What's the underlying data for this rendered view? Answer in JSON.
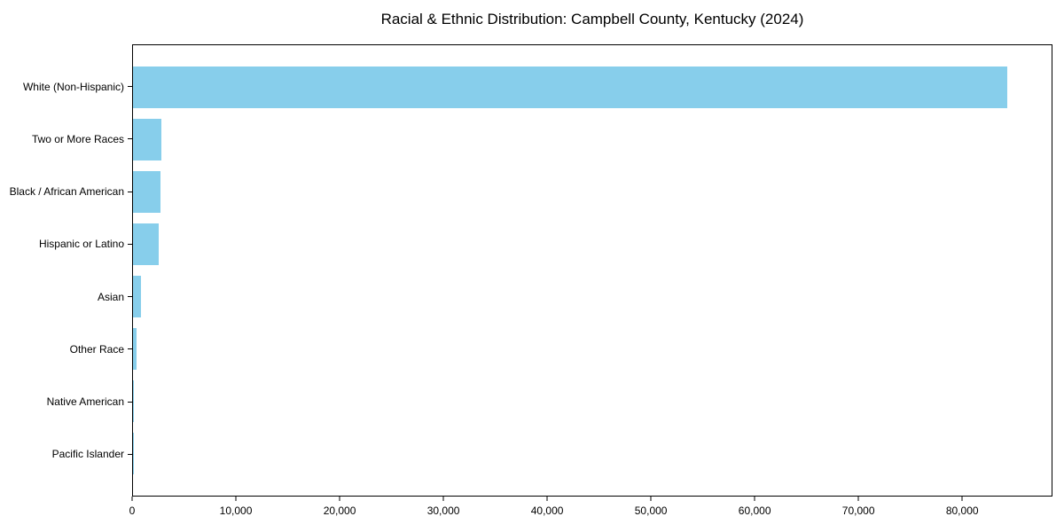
{
  "chart_data": {
    "type": "bar",
    "orientation": "horizontal",
    "title": "Racial & Ethnic Distribution: Campbell County, Kentucky (2024)",
    "categories": [
      "White (Non-Hispanic)",
      "Two or More Races",
      "Black / African American",
      "Hispanic or Latino",
      "Asian",
      "Other Race",
      "Native American",
      "Pacific Islander"
    ],
    "values": [
      84400,
      2750,
      2650,
      2500,
      780,
      350,
      100,
      25
    ],
    "xlabel": "",
    "ylabel": "",
    "xlim": [
      0,
      88700
    ],
    "xticks": [
      0,
      10000,
      20000,
      30000,
      40000,
      50000,
      60000,
      70000,
      80000
    ],
    "xtick_labels": [
      "0",
      "10,000",
      "20,000",
      "30,000",
      "40,000",
      "50,000",
      "60,000",
      "70,000",
      "80,000"
    ],
    "bar_color": "#87CEEB",
    "frame_color": "#000000",
    "background_color": "#ffffff",
    "grid": false,
    "legend": null,
    "category_order": "largest value at top, y-axis inverted"
  }
}
